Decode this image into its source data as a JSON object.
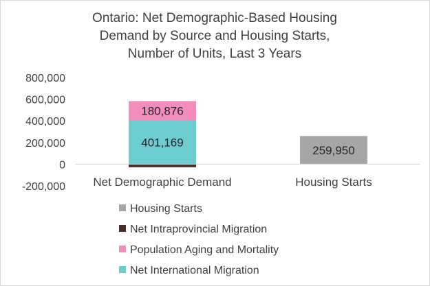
{
  "chart_data": {
    "type": "bar",
    "stacked": true,
    "title_lines": [
      "Ontario: Net Demographic-Based Housing",
      "Demand by Source and Housing Starts,",
      "Number of Units, Last 3 Years"
    ],
    "categories": [
      "Net Demographic Demand",
      "Housing Starts"
    ],
    "ylim": [
      -200000,
      800000
    ],
    "yticks": [
      800000,
      600000,
      400000,
      200000,
      0,
      -200000
    ],
    "ytick_labels": [
      "800,000",
      "600,000",
      "400,000",
      "200,000",
      "0",
      "-200,000"
    ],
    "gridlines": false,
    "series": [
      {
        "name": "Net International Migration",
        "color": "#6ccdd0",
        "values": [
          401169,
          0
        ],
        "labels": [
          "401,169",
          ""
        ]
      },
      {
        "name": "Population Aging and Mortality",
        "color": "#f28cba",
        "values": [
          180876,
          0
        ],
        "labels": [
          "180,876",
          ""
        ]
      },
      {
        "name": "Net Intraprovincial Migration",
        "color": "#4a2a22",
        "values": [
          -28000,
          0
        ],
        "labels": [
          "",
          ""
        ]
      },
      {
        "name": "Housing Starts",
        "color": "#a6a6a6",
        "values": [
          0,
          259950
        ],
        "labels": [
          "",
          "259,950"
        ]
      }
    ],
    "legend_order": [
      "Housing Starts",
      "Net Intraprovincial Migration",
      "Population Aging and Mortality",
      "Net International Migration"
    ],
    "legend_position": "bottom"
  }
}
